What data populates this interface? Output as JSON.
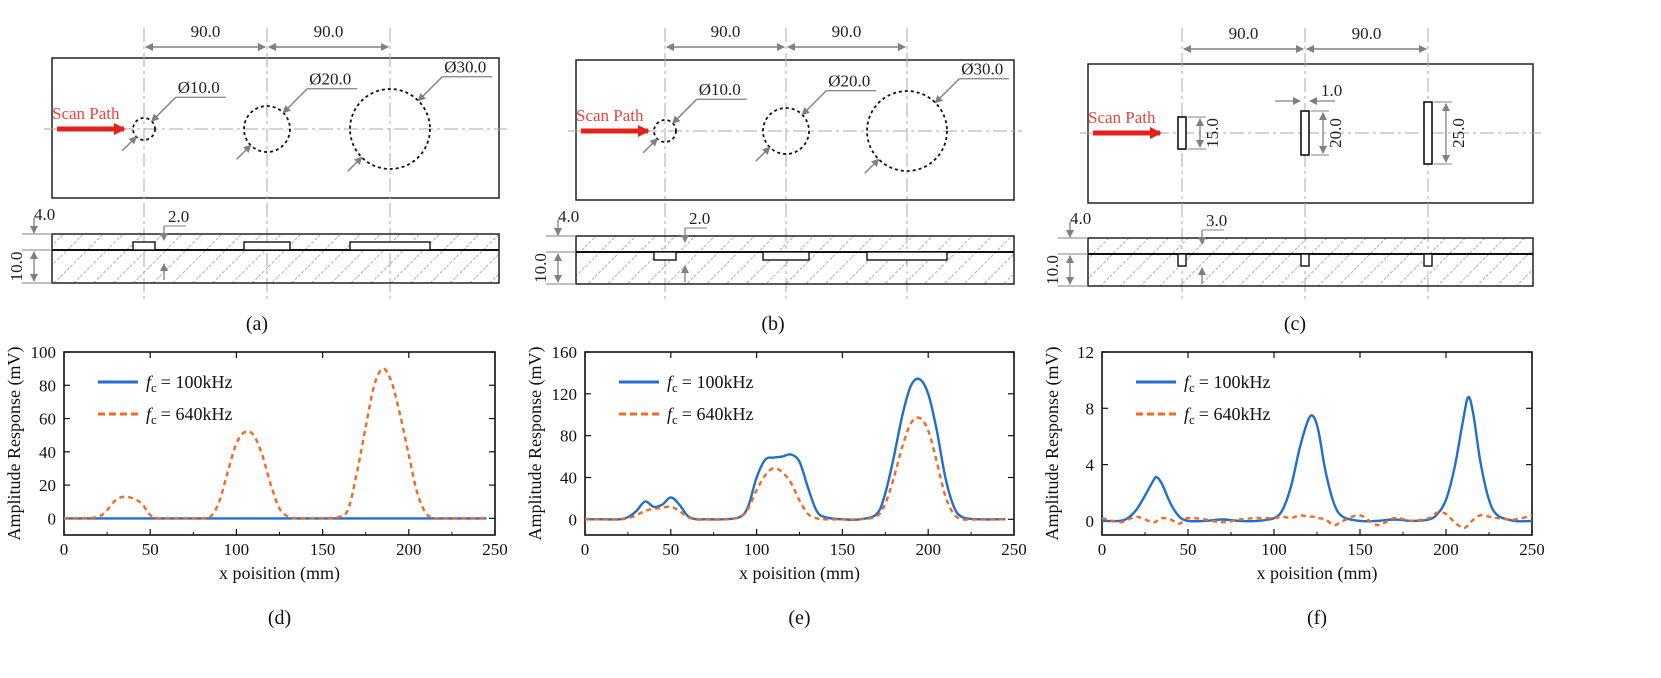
{
  "figure": {
    "scan_label": "Scan Path",
    "spacing_labels": [
      "90.0",
      "90.0"
    ],
    "diagrams": [
      {
        "caption": "(a)",
        "defect": "circle",
        "defect_labels": [
          "Ø10.0",
          "Ø20.0",
          "Ø30.0"
        ],
        "side_labels": {
          "top": "4.0",
          "depth": "2.0",
          "thickness": "10.0"
        },
        "depth_at_top": true
      },
      {
        "caption": "(b)",
        "defect": "circle",
        "defect_labels": [
          "Ø10.0",
          "Ø20.0",
          "Ø30.0"
        ],
        "side_labels": {
          "top": "4.0",
          "depth": "2.0",
          "thickness": "10.0"
        },
        "depth_at_top": false
      },
      {
        "caption": "(c)",
        "defect": "slot",
        "defect_labels": [
          "15.0",
          "20.0",
          "25.0"
        ],
        "width_label": "1.0",
        "side_labels": {
          "top": "4.0",
          "depth": "3.0",
          "thickness": "10.0"
        },
        "depth_at_top": false
      }
    ]
  },
  "legend": {
    "f_symbol": "f",
    "f_sub": "c",
    "series_1": "= 100kHz",
    "series_2": "= 640kHz"
  },
  "colors": {
    "series_100kHz": "#1f6fcc",
    "series_640kHz": "#f26a21",
    "scan_arrow": "#e3231b",
    "dim_line": "#808080"
  },
  "chart_data": [
    {
      "type": "line",
      "caption": "(d)",
      "xlabel": "x poisition (mm)",
      "ylabel": "Amplitude Response (mV)",
      "xlim": [
        0,
        250
      ],
      "ylim": [
        -10,
        100
      ],
      "xticks": [
        0,
        50,
        100,
        150,
        200,
        250
      ],
      "yticks": [
        0,
        20,
        40,
        60,
        80,
        100
      ],
      "x": [
        0,
        10,
        20,
        25,
        30,
        35,
        40,
        45,
        50,
        55,
        60,
        70,
        80,
        85,
        90,
        95,
        100,
        105,
        110,
        115,
        120,
        125,
        130,
        135,
        140,
        150,
        160,
        165,
        170,
        175,
        180,
        185,
        190,
        195,
        200,
        205,
        210,
        215,
        220,
        230,
        240,
        245
      ],
      "series": [
        {
          "name": "100kHz",
          "values": [
            0,
            0,
            0,
            0,
            0,
            0,
            0,
            0,
            0,
            0,
            0,
            0,
            0,
            0,
            0,
            0,
            0,
            0,
            0,
            0,
            0,
            0,
            0,
            0,
            0,
            0,
            0,
            0,
            0,
            0,
            0,
            0,
            0,
            0,
            0,
            0,
            0,
            0,
            0,
            0,
            0,
            0
          ]
        },
        {
          "name": "640kHz",
          "values": [
            0,
            0,
            1,
            5,
            11,
            13,
            12,
            9,
            2,
            0,
            0,
            0,
            0,
            1,
            10,
            28,
            45,
            52,
            50,
            38,
            20,
            6,
            1,
            0,
            0,
            0,
            1,
            6,
            28,
            55,
            80,
            90,
            82,
            62,
            38,
            15,
            3,
            0,
            0,
            0,
            0,
            0
          ]
        }
      ]
    },
    {
      "type": "line",
      "caption": "(e)",
      "xlabel": "x poisition (mm)",
      "ylabel": "Amplitude Response (mV)",
      "xlim": [
        0,
        250
      ],
      "ylim": [
        -15,
        160
      ],
      "xticks": [
        0,
        50,
        100,
        150,
        200,
        250
      ],
      "yticks": [
        0,
        40,
        80,
        120,
        160
      ],
      "x": [
        0,
        10,
        20,
        25,
        30,
        35,
        40,
        45,
        50,
        55,
        60,
        65,
        70,
        80,
        90,
        95,
        100,
        105,
        110,
        115,
        120,
        125,
        130,
        135,
        140,
        150,
        160,
        170,
        175,
        180,
        185,
        190,
        195,
        200,
        205,
        210,
        215,
        220,
        230,
        240,
        245
      ],
      "series": [
        {
          "name": "100kHz",
          "values": [
            0,
            0,
            0,
            2,
            8,
            17,
            12,
            14,
            21,
            14,
            3,
            0,
            0,
            0,
            2,
            12,
            40,
            57,
            59,
            60,
            62,
            55,
            30,
            8,
            2,
            0,
            0,
            5,
            25,
            60,
            100,
            128,
            134,
            120,
            85,
            40,
            12,
            2,
            0,
            0,
            0
          ]
        },
        {
          "name": "640kHz",
          "values": [
            0,
            0,
            0,
            1,
            4,
            8,
            10,
            11,
            12,
            8,
            2,
            0,
            0,
            0,
            2,
            10,
            28,
            42,
            49,
            45,
            35,
            18,
            5,
            1,
            0,
            0,
            0,
            3,
            15,
            40,
            70,
            92,
            97,
            85,
            55,
            22,
            5,
            0,
            0,
            0,
            0
          ]
        }
      ]
    },
    {
      "type": "line",
      "caption": "(f)",
      "xlabel": "x poisition (mm)",
      "ylabel": "Amplitude Response (mV)",
      "xlim": [
        0,
        250
      ],
      "ylim": [
        -1,
        12
      ],
      "xticks": [
        0,
        50,
        100,
        150,
        200,
        250
      ],
      "yticks": [
        0,
        4,
        8,
        12
      ],
      "x": [
        0,
        10,
        15,
        20,
        25,
        30,
        32,
        35,
        40,
        45,
        50,
        60,
        70,
        80,
        90,
        100,
        105,
        110,
        115,
        120,
        123,
        126,
        130,
        135,
        140,
        150,
        160,
        170,
        180,
        190,
        195,
        200,
        205,
        210,
        213,
        216,
        220,
        225,
        230,
        240,
        250
      ],
      "series": [
        {
          "name": "100kHz",
          "values": [
            0,
            0,
            0.2,
            0.8,
            1.8,
            2.9,
            3.1,
            2.6,
            1.2,
            0.3,
            0,
            0,
            0.1,
            0,
            0,
            0.2,
            0.8,
            2.5,
            5.2,
            7.2,
            7.4,
            6.3,
            3.5,
            1.2,
            0.3,
            0,
            0,
            0.1,
            0,
            0.1,
            0.5,
            1.5,
            3.8,
            7.2,
            8.8,
            7.5,
            4.2,
            1.5,
            0.4,
            0,
            0
          ]
        },
        {
          "name": "640kHz",
          "values": [
            0.2,
            -0.1,
            0.1,
            0.3,
            0.1,
            -0.1,
            0,
            0.2,
            0.1,
            -0.2,
            0.2,
            0.1,
            -0.1,
            0.1,
            0.2,
            0.2,
            0.3,
            0.2,
            0.4,
            0.3,
            0.3,
            0.2,
            0.1,
            -0.3,
            0,
            0.4,
            -0.3,
            0.2,
            0,
            0.2,
            0.6,
            0.5,
            -0.1,
            -0.5,
            -0.3,
            0.1,
            0.4,
            0.3,
            0.2,
            0.1,
            0.4
          ]
        }
      ]
    }
  ]
}
